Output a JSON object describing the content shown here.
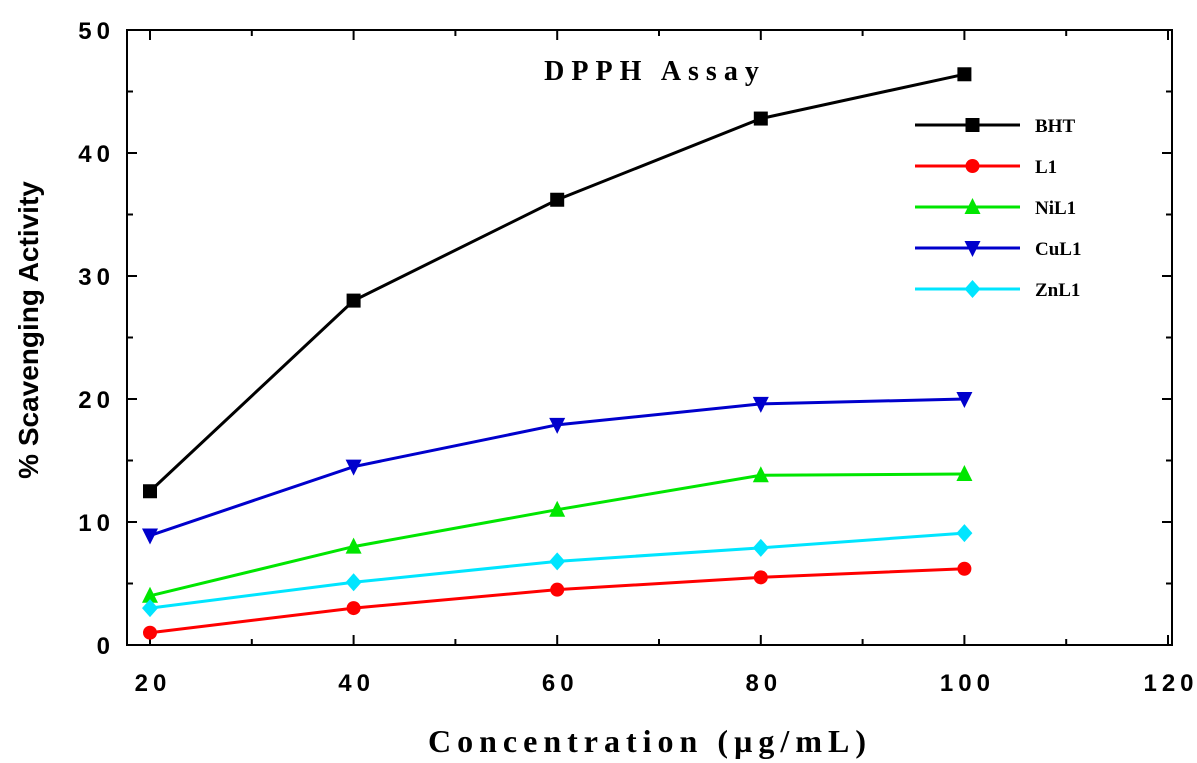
{
  "chart_data": {
    "type": "line",
    "title": "DPPH Assay",
    "xlabel": "Concentration (µg/mL)",
    "ylabel": "% Scavenging Activity",
    "xlim": [
      20,
      120
    ],
    "ylim": [
      0,
      50
    ],
    "x_ticks": [
      20,
      40,
      60,
      80,
      100,
      120
    ],
    "y_ticks": [
      0,
      10,
      20,
      30,
      40,
      50
    ],
    "x_tick_labels": [
      "20",
      "40",
      "60",
      "80",
      "100",
      "120"
    ],
    "y_tick_labels": [
      "0",
      "10",
      "20",
      "30",
      "40",
      "50"
    ],
    "x": [
      20,
      40,
      60,
      80,
      100
    ],
    "legend_position": "top-right",
    "grid": false,
    "series": [
      {
        "name": "BHT",
        "color": "#000000",
        "marker": "square",
        "values": [
          12.5,
          28,
          36.2,
          42.8,
          46.4
        ]
      },
      {
        "name": "L1",
        "color": "#ff0000",
        "marker": "circle",
        "values": [
          1.0,
          3.0,
          4.5,
          5.5,
          6.2
        ]
      },
      {
        "name": "NiL1",
        "color": "#00e600",
        "marker": "triangle-up",
        "values": [
          4.0,
          8.0,
          11.0,
          13.8,
          13.9
        ]
      },
      {
        "name": "CuL1",
        "color": "#0000cc",
        "marker": "triangle-down",
        "values": [
          8.9,
          14.5,
          17.9,
          19.6,
          20.0
        ]
      },
      {
        "name": "ZnL1",
        "color": "#00e5ff",
        "marker": "diamond",
        "values": [
          3.0,
          5.1,
          6.8,
          7.9,
          9.1
        ]
      }
    ]
  }
}
